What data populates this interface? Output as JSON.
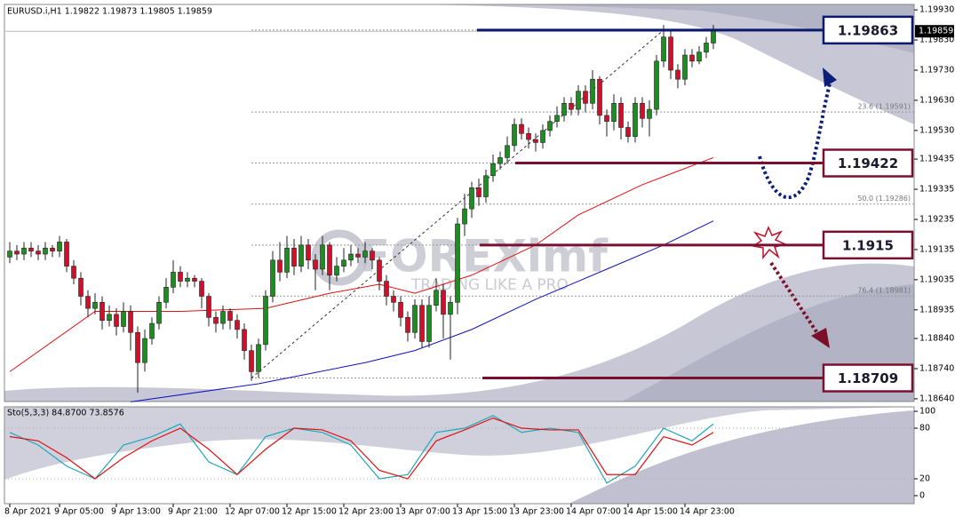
{
  "header": "EURUSD.i,H1  1.19822 1.19873 1.19805 1.19859",
  "watermark": {
    "title": "FOREXimf",
    "slogan": "TRADING LIKE A PRO"
  },
  "chart_data": {
    "type": "candlestick",
    "up_color": "#1e8c1e",
    "down_color": "#d0102a",
    "categories": [
      "8 Apr 2021",
      null,
      null,
      null,
      null,
      null,
      null,
      "9 Apr 05:00",
      null,
      null,
      null,
      null,
      null,
      null,
      null,
      "9 Apr 13:00",
      null,
      null,
      null,
      null,
      null,
      null,
      null,
      "9 Apr 21:00",
      null,
      null,
      null,
      null,
      null,
      null,
      null,
      "12 Apr 07:00",
      null,
      null,
      null,
      null,
      null,
      null,
      null,
      "12 Apr 15:00",
      null,
      null,
      null,
      null,
      null,
      null,
      null,
      "12 Apr 23:00",
      null,
      null,
      null,
      null,
      null,
      null,
      null,
      "13 Apr 07:00",
      null,
      null,
      null,
      null,
      null,
      null,
      null,
      "13 Apr 15:00",
      null,
      null,
      null,
      null,
      null,
      null,
      null,
      "13 Apr 23:00",
      null,
      null,
      null,
      null,
      null,
      null,
      null,
      "14 Apr 07:00",
      null,
      null,
      null,
      null,
      null,
      null,
      null,
      "14 Apr 15:00",
      null,
      null,
      null,
      null,
      null,
      null,
      null,
      "14 Apr 23:00",
      null,
      null,
      null,
      null
    ],
    "ohlc": [
      [
        1.1911,
        1.1916,
        1.1909,
        1.1913
      ],
      [
        1.1913,
        1.1915,
        1.191,
        1.1912
      ],
      [
        1.1912,
        1.1916,
        1.191,
        1.1914
      ],
      [
        1.1914,
        1.1916,
        1.1911,
        1.1913
      ],
      [
        1.1913,
        1.1915,
        1.191,
        1.1912
      ],
      [
        1.1912,
        1.1916,
        1.191,
        1.1914
      ],
      [
        1.1914,
        1.1915,
        1.1911,
        1.1913
      ],
      [
        1.1913,
        1.1918,
        1.1911,
        1.1916
      ],
      [
        1.1916,
        1.1917,
        1.1906,
        1.1908
      ],
      [
        1.1908,
        1.191,
        1.1902,
        1.1904
      ],
      [
        1.1904,
        1.1906,
        1.1895,
        1.1898
      ],
      [
        1.1898,
        1.19,
        1.1891,
        1.1894
      ],
      [
        1.1894,
        1.1899,
        1.1892,
        1.1896
      ],
      [
        1.1896,
        1.1898,
        1.1887,
        1.189
      ],
      [
        1.189,
        1.1895,
        1.1888,
        1.1892
      ],
      [
        1.1892,
        1.1894,
        1.1885,
        1.1888
      ],
      [
        1.1888,
        1.1896,
        1.1886,
        1.1893
      ],
      [
        1.1893,
        1.1895,
        1.188,
        1.1886
      ],
      [
        1.1886,
        1.1888,
        1.1866,
        1.1876
      ],
      [
        1.1876,
        1.1887,
        1.1873,
        1.1884
      ],
      [
        1.1884,
        1.1891,
        1.1882,
        1.1889
      ],
      [
        1.1889,
        1.1898,
        1.1887,
        1.1896
      ],
      [
        1.1896,
        1.1904,
        1.1894,
        1.1901
      ],
      [
        1.1901,
        1.191,
        1.1899,
        1.1906
      ],
      [
        1.1906,
        1.1908,
        1.1901,
        1.1903
      ],
      [
        1.1903,
        1.1906,
        1.1901,
        1.1904
      ],
      [
        1.1904,
        1.1905,
        1.1901,
        1.1903
      ],
      [
        1.1903,
        1.1904,
        1.1894,
        1.1898
      ],
      [
        1.1898,
        1.1899,
        1.1888,
        1.1891
      ],
      [
        1.1891,
        1.1893,
        1.1886,
        1.1889
      ],
      [
        1.1889,
        1.1895,
        1.1887,
        1.1893
      ],
      [
        1.1893,
        1.1894,
        1.1887,
        1.189
      ],
      [
        1.189,
        1.1892,
        1.1884,
        1.1887
      ],
      [
        1.1887,
        1.1889,
        1.1877,
        1.188
      ],
      [
        1.188,
        1.1882,
        1.187,
        1.1873
      ],
      [
        1.1873,
        1.1884,
        1.1871,
        1.1882
      ],
      [
        1.1882,
        1.19,
        1.188,
        1.1898
      ],
      [
        1.1898,
        1.1913,
        1.1896,
        1.191
      ],
      [
        1.191,
        1.1916,
        1.1903,
        1.1906
      ],
      [
        1.1906,
        1.1918,
        1.1904,
        1.1914
      ],
      [
        1.1914,
        1.1917,
        1.1905,
        1.1908
      ],
      [
        1.1908,
        1.1918,
        1.1906,
        1.1915
      ],
      [
        1.1915,
        1.1917,
        1.1907,
        1.191
      ],
      [
        1.191,
        1.1912,
        1.19,
        1.1907
      ],
      [
        1.1907,
        1.1918,
        1.1905,
        1.1915
      ],
      [
        1.1915,
        1.1916,
        1.19,
        1.1905
      ],
      [
        1.1905,
        1.1911,
        1.1903,
        1.1908
      ],
      [
        1.1908,
        1.1914,
        1.1906,
        1.191
      ],
      [
        1.191,
        1.1915,
        1.1908,
        1.1912
      ],
      [
        1.1912,
        1.1914,
        1.1909,
        1.1911
      ],
      [
        1.1911,
        1.1916,
        1.1909,
        1.1913
      ],
      [
        1.1913,
        1.1914,
        1.1907,
        1.191
      ],
      [
        1.191,
        1.1911,
        1.19,
        1.1903
      ],
      [
        1.1903,
        1.1905,
        1.1895,
        1.1898
      ],
      [
        1.1898,
        1.19,
        1.1893,
        1.1896
      ],
      [
        1.1896,
        1.1898,
        1.1888,
        1.1891
      ],
      [
        1.1891,
        1.1893,
        1.1883,
        1.1886
      ],
      [
        1.1886,
        1.1897,
        1.1884,
        1.1895
      ],
      [
        1.1895,
        1.1897,
        1.1881,
        1.1883
      ],
      [
        1.1883,
        1.1898,
        1.1881,
        1.1895
      ],
      [
        1.1895,
        1.1904,
        1.1893,
        1.19
      ],
      [
        1.19,
        1.1902,
        1.1884,
        1.1892
      ],
      [
        1.1892,
        1.1898,
        1.1877,
        1.1896
      ],
      [
        1.1896,
        1.1924,
        1.1892,
        1.1922
      ],
      [
        1.1922,
        1.1932,
        1.1918,
        1.1927
      ],
      [
        1.1927,
        1.1936,
        1.1924,
        1.1934
      ],
      [
        1.1934,
        1.1937,
        1.1928,
        1.1931
      ],
      [
        1.1931,
        1.194,
        1.1929,
        1.1938
      ],
      [
        1.1938,
        1.1945,
        1.1936,
        1.1942
      ],
      [
        1.1942,
        1.1946,
        1.194,
        1.1944
      ],
      [
        1.1944,
        1.1951,
        1.1942,
        1.1948
      ],
      [
        1.1948,
        1.1957,
        1.1946,
        1.1955
      ],
      [
        1.1955,
        1.1957,
        1.195,
        1.1952
      ],
      [
        1.1952,
        1.1954,
        1.1947,
        1.195
      ],
      [
        1.195,
        1.1952,
        1.1946,
        1.1949
      ],
      [
        1.1949,
        1.1955,
        1.1947,
        1.1953
      ],
      [
        1.1953,
        1.1958,
        1.1951,
        1.1956
      ],
      [
        1.1956,
        1.1961,
        1.1954,
        1.1958
      ],
      [
        1.1958,
        1.1964,
        1.1956,
        1.1962
      ],
      [
        1.1962,
        1.1964,
        1.1958,
        1.196
      ],
      [
        1.196,
        1.1968,
        1.1958,
        1.1966
      ],
      [
        1.1966,
        1.1968,
        1.1959,
        1.1962
      ],
      [
        1.1962,
        1.1973,
        1.196,
        1.197
      ],
      [
        1.197,
        1.1971,
        1.1955,
        1.1958
      ],
      [
        1.1958,
        1.196,
        1.1951,
        1.1956
      ],
      [
        1.1956,
        1.1965,
        1.1953,
        1.1962
      ],
      [
        1.1962,
        1.1964,
        1.195,
        1.1954
      ],
      [
        1.1954,
        1.1956,
        1.1949,
        1.1951
      ],
      [
        1.1951,
        1.1964,
        1.1949,
        1.1962
      ],
      [
        1.1962,
        1.1964,
        1.1954,
        1.1957
      ],
      [
        1.1957,
        1.1963,
        1.1951,
        1.196
      ],
      [
        1.196,
        1.1978,
        1.1958,
        1.1976
      ],
      [
        1.1976,
        1.1988,
        1.1974,
        1.1984
      ],
      [
        1.1984,
        1.1986,
        1.197,
        1.1973
      ],
      [
        1.1973,
        1.1975,
        1.1967,
        1.197
      ],
      [
        1.197,
        1.198,
        1.1968,
        1.1978
      ],
      [
        1.1978,
        1.198,
        1.1974,
        1.1976
      ],
      [
        1.1976,
        1.1981,
        1.1975,
        1.1979
      ],
      [
        1.1979,
        1.1984,
        1.1977,
        1.1982
      ],
      [
        1.1982,
        1.1988,
        1.198,
        1.1986
      ]
    ],
    "ma_lines": [
      {
        "color": "#e01010",
        "x": [
          0,
          12,
          24,
          36,
          45,
          52,
          57,
          65,
          74,
          80,
          89,
          99
        ],
        "values": [
          1.1873,
          1.1893,
          1.1893,
          1.1894,
          1.1899,
          1.1902,
          1.1899,
          1.1905,
          1.1915,
          1.1925,
          1.1935,
          1.1944
        ]
      },
      {
        "color": "#1010c0",
        "x": [
          17,
          35,
          50,
          57,
          65,
          74,
          84,
          92,
          99
        ],
        "values": [
          1.1863,
          1.1869,
          1.1876,
          1.188,
          1.1887,
          1.1897,
          1.1907,
          1.1915,
          1.1923
        ]
      }
    ],
    "ylim": [
      1.18631,
      1.19948
    ],
    "yticks": [
      {
        "value": 1.1993,
        "label": "1.19930"
      },
      {
        "value": 1.1983,
        "label": "1.19830"
      },
      {
        "value": 1.1973,
        "label": "1.19730"
      },
      {
        "value": 1.1963,
        "label": "1.19630"
      },
      {
        "value": 1.1953,
        "label": "1.19530"
      },
      {
        "value": 1.19435,
        "label": "1.19435"
      },
      {
        "value": 1.19335,
        "label": "1.19335"
      },
      {
        "value": 1.19235,
        "label": "1.19235"
      },
      {
        "value": 1.19135,
        "label": "1.19135"
      },
      {
        "value": 1.19035,
        "label": "1.19035"
      },
      {
        "value": 1.18935,
        "label": "1.18935"
      },
      {
        "value": 1.1884,
        "label": "1.18840"
      },
      {
        "value": 1.1874,
        "label": "1.18740"
      },
      {
        "value": 1.1864,
        "label": "1.18640"
      }
    ],
    "current_price": 1.19859,
    "fib_levels": [
      1.19863,
      1.19591,
      1.19422,
      1.19286,
      1.1915,
      1.18981,
      1.18709
    ],
    "fib_labels": [
      null,
      "23.6 (1.19591)",
      null,
      "50.0 (1.19286)",
      null,
      "76.4 (1.18981)",
      null
    ],
    "levels": [
      {
        "value": 1.19863,
        "color": "#0b1a6e"
      },
      {
        "value": 1.19422,
        "color": "#7a1030"
      },
      {
        "value": 1.1915,
        "color": "#7a1030"
      },
      {
        "value": 1.18709,
        "color": "#7a1030"
      }
    ]
  },
  "stochastic": {
    "title": "Sto(5,3,3) 84.8700 73.8576",
    "ylim": [
      -9.5,
      105.3
    ],
    "yticks": [
      0,
      20,
      80,
      100
    ],
    "series": [
      {
        "color": "#20a8b8",
        "x": [
          0,
          4,
          8,
          12,
          16,
          20,
          24,
          28,
          32,
          36,
          40,
          44,
          48,
          52,
          56,
          60,
          64,
          68,
          72,
          76,
          80,
          84,
          88,
          92,
          96,
          99
        ],
        "values": [
          75,
          60,
          35,
          20,
          60,
          70,
          85,
          40,
          25,
          70,
          80,
          75,
          60,
          20,
          25,
          75,
          80,
          95,
          75,
          80,
          75,
          15,
          35,
          80,
          65,
          85
        ]
      },
      {
        "color": "#e01010",
        "x": [
          0,
          4,
          8,
          12,
          16,
          20,
          24,
          28,
          32,
          36,
          40,
          44,
          48,
          52,
          56,
          60,
          64,
          68,
          72,
          76,
          80,
          84,
          88,
          92,
          96,
          99
        ],
        "values": [
          70,
          65,
          45,
          20,
          45,
          65,
          80,
          55,
          25,
          55,
          80,
          78,
          65,
          30,
          20,
          65,
          78,
          92,
          80,
          78,
          78,
          25,
          25,
          70,
          60,
          75
        ]
      }
    ]
  }
}
